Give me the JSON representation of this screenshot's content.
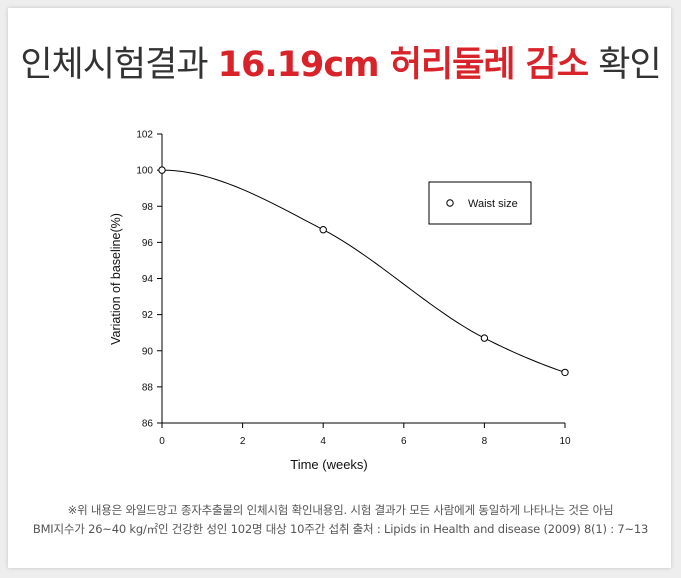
{
  "headline": {
    "part1": "인체시험결과 ",
    "part2": "16.19cm 허리둘레 감소",
    "part3": " 확인",
    "accent_color": "#d9232a"
  },
  "chart_data": {
    "type": "line",
    "x": [
      0,
      4,
      8,
      10
    ],
    "series": [
      {
        "name": "Waist size",
        "values": [
          100,
          96.7,
          90.7,
          88.8
        ],
        "marker": "open-circle"
      }
    ],
    "xlabel": "Time (weeks)",
    "ylabel": "Variation of baseline(%)",
    "xlim": [
      0,
      10
    ],
    "ylim": [
      86,
      102
    ],
    "xticks": [
      0,
      2,
      4,
      6,
      8,
      10
    ],
    "yticks": [
      86,
      88,
      90,
      92,
      94,
      96,
      98,
      100,
      102
    ],
    "grid": false,
    "legend_position": "top-right",
    "smooth": true
  },
  "footnote": {
    "line1": "※위 내용은 와일드망고 종자추출물의 인체시험 확인내용임. 시험 결과가 모든 사람에게 동일하게 나타나는 것은 아님",
    "line2": "BMI지수가 26~40 kg/㎡인 건강한 성인 102명 대상 10주간 섭취  출처 : Lipids in Health and disease (2009) 8(1) : 7~13"
  }
}
